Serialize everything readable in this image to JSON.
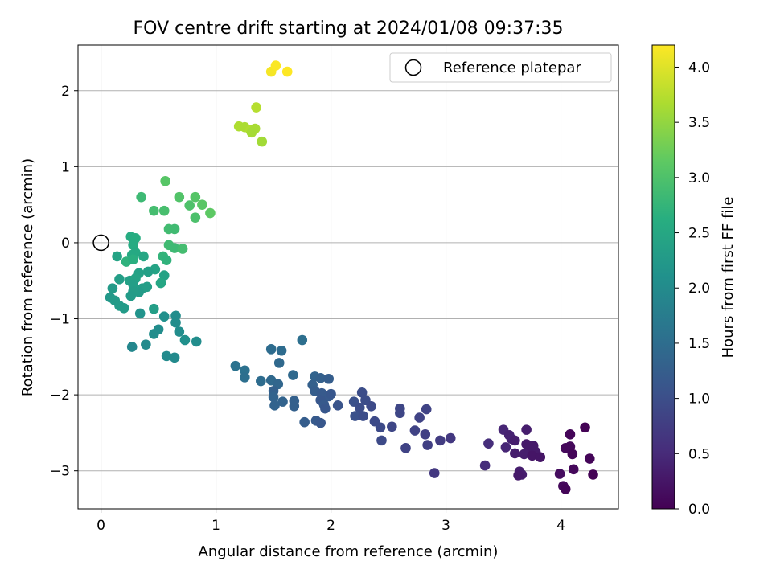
{
  "chart_data": {
    "type": "scatter",
    "title": "FOV centre drift starting at 2024/01/08 09:37:35",
    "xlabel": "Angular distance from reference (arcmin)",
    "ylabel": "Rotation from reference (arcmin)",
    "xlim": [
      -0.2,
      4.5
    ],
    "ylim": [
      -3.5,
      2.6
    ],
    "xticks": [
      0,
      1,
      2,
      3,
      4
    ],
    "yticks": [
      -3,
      -2,
      -1,
      0,
      1,
      2
    ],
    "grid": true,
    "legend": {
      "position": "top-right",
      "label": "Reference platepar"
    },
    "reference_point": [
      0,
      0
    ],
    "colorbar": {
      "label": "Hours from first FF file",
      "range": [
        0,
        4.2
      ],
      "ticks": [
        "0.0",
        "0.5",
        "1.0",
        "1.5",
        "2.0",
        "2.5",
        "3.0",
        "3.5",
        "4.0"
      ],
      "colormap": "viridis"
    },
    "points": [
      {
        "x": 1.48,
        "y": 2.25,
        "t": 4.15
      },
      {
        "x": 1.52,
        "y": 2.33,
        "t": 4.18
      },
      {
        "x": 1.62,
        "y": 2.25,
        "t": 4.2
      },
      {
        "x": 1.35,
        "y": 1.78,
        "t": 3.75
      },
      {
        "x": 1.2,
        "y": 1.53,
        "t": 3.7
      },
      {
        "x": 1.25,
        "y": 1.52,
        "t": 3.68
      },
      {
        "x": 1.3,
        "y": 1.48,
        "t": 3.72
      },
      {
        "x": 1.34,
        "y": 1.5,
        "t": 3.66
      },
      {
        "x": 1.31,
        "y": 1.45,
        "t": 3.64
      },
      {
        "x": 1.4,
        "y": 1.33,
        "t": 3.62
      },
      {
        "x": 0.56,
        "y": 0.81,
        "t": 3.1
      },
      {
        "x": 0.68,
        "y": 0.6,
        "t": 3.05
      },
      {
        "x": 0.82,
        "y": 0.6,
        "t": 3.08
      },
      {
        "x": 0.88,
        "y": 0.5,
        "t": 3.12
      },
      {
        "x": 0.95,
        "y": 0.39,
        "t": 3.15
      },
      {
        "x": 0.77,
        "y": 0.49,
        "t": 3.02
      },
      {
        "x": 0.82,
        "y": 0.33,
        "t": 3.0
      },
      {
        "x": 0.55,
        "y": 0.42,
        "t": 2.95
      },
      {
        "x": 0.46,
        "y": 0.42,
        "t": 2.93
      },
      {
        "x": 0.35,
        "y": 0.6,
        "t": 2.85
      },
      {
        "x": 0.59,
        "y": 0.18,
        "t": 2.9
      },
      {
        "x": 0.64,
        "y": 0.18,
        "t": 2.88
      },
      {
        "x": 0.59,
        "y": -0.03,
        "t": 2.88
      },
      {
        "x": 0.64,
        "y": -0.07,
        "t": 2.86
      },
      {
        "x": 0.71,
        "y": -0.08,
        "t": 2.92
      },
      {
        "x": 0.54,
        "y": -0.18,
        "t": 2.75
      },
      {
        "x": 0.57,
        "y": -0.23,
        "t": 2.72
      },
      {
        "x": 0.26,
        "y": 0.08,
        "t": 2.6
      },
      {
        "x": 0.3,
        "y": 0.06,
        "t": 2.62
      },
      {
        "x": 0.28,
        "y": -0.03,
        "t": 2.58
      },
      {
        "x": 0.3,
        "y": -0.13,
        "t": 2.56
      },
      {
        "x": 0.27,
        "y": -0.16,
        "t": 2.55
      },
      {
        "x": 0.22,
        "y": -0.25,
        "t": 2.7
      },
      {
        "x": 0.28,
        "y": -0.22,
        "t": 2.65
      },
      {
        "x": 0.37,
        "y": -0.18,
        "t": 2.5
      },
      {
        "x": 0.14,
        "y": -0.18,
        "t": 2.45
      },
      {
        "x": 0.47,
        "y": -0.35,
        "t": 2.45
      },
      {
        "x": 0.55,
        "y": -0.43,
        "t": 2.42
      },
      {
        "x": 0.33,
        "y": -0.4,
        "t": 2.4
      },
      {
        "x": 0.41,
        "y": -0.38,
        "t": 2.38
      },
      {
        "x": 0.16,
        "y": -0.48,
        "t": 2.35
      },
      {
        "x": 0.25,
        "y": -0.5,
        "t": 2.4
      },
      {
        "x": 0.3,
        "y": -0.47,
        "t": 2.45
      },
      {
        "x": 0.52,
        "y": -0.53,
        "t": 2.5
      },
      {
        "x": 0.28,
        "y": -0.55,
        "t": 2.36
      },
      {
        "x": 0.36,
        "y": -0.6,
        "t": 2.33
      },
      {
        "x": 0.4,
        "y": -0.58,
        "t": 2.35
      },
      {
        "x": 0.1,
        "y": -0.6,
        "t": 2.28
      },
      {
        "x": 0.33,
        "y": -0.65,
        "t": 2.3
      },
      {
        "x": 0.28,
        "y": -0.64,
        "t": 2.32
      },
      {
        "x": 0.26,
        "y": -0.7,
        "t": 2.3
      },
      {
        "x": 0.08,
        "y": -0.72,
        "t": 2.25
      },
      {
        "x": 0.12,
        "y": -0.76,
        "t": 2.28
      },
      {
        "x": 0.16,
        "y": -0.83,
        "t": 2.3
      },
      {
        "x": 0.2,
        "y": -0.86,
        "t": 2.3
      },
      {
        "x": 0.46,
        "y": -0.87,
        "t": 2.35
      },
      {
        "x": 0.34,
        "y": -0.93,
        "t": 2.15
      },
      {
        "x": 0.55,
        "y": -0.97,
        "t": 2.1
      },
      {
        "x": 0.65,
        "y": -0.96,
        "t": 2.05
      },
      {
        "x": 0.65,
        "y": -1.05,
        "t": 2.05
      },
      {
        "x": 0.5,
        "y": -1.14,
        "t": 2.05
      },
      {
        "x": 0.46,
        "y": -1.2,
        "t": 2.05
      },
      {
        "x": 0.68,
        "y": -1.17,
        "t": 2.05
      },
      {
        "x": 0.73,
        "y": -1.28,
        "t": 2.1
      },
      {
        "x": 0.83,
        "y": -1.3,
        "t": 2.05
      },
      {
        "x": 0.39,
        "y": -1.34,
        "t": 2.0
      },
      {
        "x": 0.27,
        "y": -1.37,
        "t": 1.95
      },
      {
        "x": 0.57,
        "y": -1.49,
        "t": 2.0
      },
      {
        "x": 0.64,
        "y": -1.51,
        "t": 2.0
      },
      {
        "x": 1.75,
        "y": -1.28,
        "t": 1.55
      },
      {
        "x": 1.48,
        "y": -1.4,
        "t": 1.5
      },
      {
        "x": 1.57,
        "y": -1.42,
        "t": 1.5
      },
      {
        "x": 1.55,
        "y": -1.58,
        "t": 1.45
      },
      {
        "x": 1.17,
        "y": -1.62,
        "t": 1.6
      },
      {
        "x": 1.25,
        "y": -1.68,
        "t": 1.58
      },
      {
        "x": 1.25,
        "y": -1.77,
        "t": 1.55
      },
      {
        "x": 1.39,
        "y": -1.82,
        "t": 1.5
      },
      {
        "x": 1.48,
        "y": -1.81,
        "t": 1.45
      },
      {
        "x": 1.54,
        "y": -1.86,
        "t": 1.4
      },
      {
        "x": 1.5,
        "y": -1.95,
        "t": 1.3
      },
      {
        "x": 1.5,
        "y": -2.03,
        "t": 1.35
      },
      {
        "x": 1.67,
        "y": -1.74,
        "t": 1.45
      },
      {
        "x": 1.86,
        "y": -1.76,
        "t": 1.35
      },
      {
        "x": 1.84,
        "y": -1.87,
        "t": 1.3
      },
      {
        "x": 1.86,
        "y": -1.95,
        "t": 1.25
      },
      {
        "x": 1.91,
        "y": -1.78,
        "t": 1.3
      },
      {
        "x": 1.98,
        "y": -1.79,
        "t": 1.25
      },
      {
        "x": 1.92,
        "y": -1.98,
        "t": 1.2
      },
      {
        "x": 1.98,
        "y": -2.02,
        "t": 1.2
      },
      {
        "x": 2.0,
        "y": -1.99,
        "t": 1.15
      },
      {
        "x": 1.91,
        "y": -2.07,
        "t": 1.15
      },
      {
        "x": 1.94,
        "y": -2.13,
        "t": 1.2
      },
      {
        "x": 1.95,
        "y": -2.18,
        "t": 1.15
      },
      {
        "x": 1.68,
        "y": -2.08,
        "t": 1.3
      },
      {
        "x": 1.58,
        "y": -2.09,
        "t": 1.35
      },
      {
        "x": 1.68,
        "y": -2.15,
        "t": 1.3
      },
      {
        "x": 1.51,
        "y": -2.14,
        "t": 1.35
      },
      {
        "x": 1.87,
        "y": -2.34,
        "t": 1.2
      },
      {
        "x": 1.91,
        "y": -2.37,
        "t": 1.15
      },
      {
        "x": 1.77,
        "y": -2.36,
        "t": 1.25
      },
      {
        "x": 2.06,
        "y": -2.14,
        "t": 1.1
      },
      {
        "x": 2.27,
        "y": -1.97,
        "t": 1.0
      },
      {
        "x": 2.2,
        "y": -2.09,
        "t": 1.05
      },
      {
        "x": 2.3,
        "y": -2.07,
        "t": 1.0
      },
      {
        "x": 2.35,
        "y": -2.15,
        "t": 0.95
      },
      {
        "x": 2.25,
        "y": -2.17,
        "t": 1.0
      },
      {
        "x": 2.21,
        "y": -2.28,
        "t": 1.05
      },
      {
        "x": 2.28,
        "y": -2.28,
        "t": 1.0
      },
      {
        "x": 2.38,
        "y": -2.35,
        "t": 0.95
      },
      {
        "x": 2.43,
        "y": -2.43,
        "t": 0.95
      },
      {
        "x": 2.53,
        "y": -2.42,
        "t": 0.9
      },
      {
        "x": 2.44,
        "y": -2.6,
        "t": 0.95
      },
      {
        "x": 2.6,
        "y": -2.18,
        "t": 0.9
      },
      {
        "x": 2.6,
        "y": -2.24,
        "t": 0.9
      },
      {
        "x": 2.83,
        "y": -2.19,
        "t": 0.85
      },
      {
        "x": 2.77,
        "y": -2.3,
        "t": 0.85
      },
      {
        "x": 2.73,
        "y": -2.47,
        "t": 0.85
      },
      {
        "x": 2.82,
        "y": -2.52,
        "t": 0.8
      },
      {
        "x": 2.84,
        "y": -2.66,
        "t": 0.8
      },
      {
        "x": 2.65,
        "y": -2.7,
        "t": 0.85
      },
      {
        "x": 2.95,
        "y": -2.6,
        "t": 0.75
      },
      {
        "x": 3.04,
        "y": -2.57,
        "t": 0.7
      },
      {
        "x": 2.9,
        "y": -3.03,
        "t": 0.7
      },
      {
        "x": 3.37,
        "y": -2.64,
        "t": 0.55
      },
      {
        "x": 3.34,
        "y": -2.93,
        "t": 0.55
      },
      {
        "x": 3.5,
        "y": -2.46,
        "t": 0.45
      },
      {
        "x": 3.55,
        "y": -2.53,
        "t": 0.4
      },
      {
        "x": 3.57,
        "y": -2.58,
        "t": 0.4
      },
      {
        "x": 3.52,
        "y": -2.69,
        "t": 0.45
      },
      {
        "x": 3.6,
        "y": -2.6,
        "t": 0.35
      },
      {
        "x": 3.6,
        "y": -2.77,
        "t": 0.35
      },
      {
        "x": 3.7,
        "y": -2.46,
        "t": 0.35
      },
      {
        "x": 3.7,
        "y": -2.65,
        "t": 0.3
      },
      {
        "x": 3.72,
        "y": -2.72,
        "t": 0.3
      },
      {
        "x": 3.68,
        "y": -2.78,
        "t": 0.35
      },
      {
        "x": 3.76,
        "y": -2.67,
        "t": 0.3
      },
      {
        "x": 3.78,
        "y": -2.75,
        "t": 0.3
      },
      {
        "x": 3.75,
        "y": -2.8,
        "t": 0.25
      },
      {
        "x": 3.82,
        "y": -2.82,
        "t": 0.25
      },
      {
        "x": 3.64,
        "y": -3.01,
        "t": 0.35
      },
      {
        "x": 3.66,
        "y": -3.05,
        "t": 0.35
      },
      {
        "x": 3.63,
        "y": -3.06,
        "t": 0.3
      },
      {
        "x": 3.99,
        "y": -3.04,
        "t": 0.15
      },
      {
        "x": 4.02,
        "y": -3.2,
        "t": 0.1
      },
      {
        "x": 4.04,
        "y": -3.24,
        "t": 0.05
      },
      {
        "x": 4.04,
        "y": -2.7,
        "t": 0.1
      },
      {
        "x": 4.08,
        "y": -2.68,
        "t": 0.1
      },
      {
        "x": 4.1,
        "y": -2.78,
        "t": 0.05
      },
      {
        "x": 4.08,
        "y": -2.52,
        "t": 0.05
      },
      {
        "x": 4.21,
        "y": -2.43,
        "t": 0.02
      },
      {
        "x": 4.25,
        "y": -2.84,
        "t": 0.05
      },
      {
        "x": 4.28,
        "y": -3.05,
        "t": 0.02
      },
      {
        "x": 4.11,
        "y": -2.98,
        "t": 0.1
      }
    ]
  }
}
